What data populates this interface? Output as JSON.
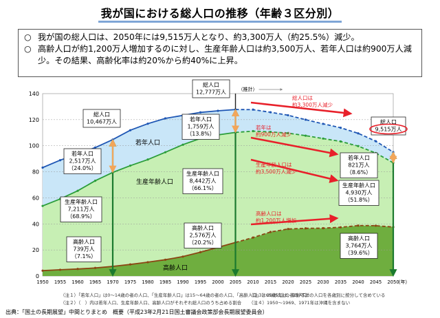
{
  "title": "我が国における総人口の推移（年齢３区分別）",
  "summary": [
    {
      "mark": "○",
      "text": "我が国の総人口は、2050年には9,515万人となり、約3,300万人（約25.5%）減少。"
    },
    {
      "mark": "○",
      "text": "高齢人口が約1,200万人増加するのに対し、生産年齢人口は約3,500万人、若年人口は約900万人減少。その結果、高齢化率は約20%から約40%に上昇。"
    }
  ],
  "colors": {
    "young": "#c9e6f8",
    "working": "#c7efb4",
    "elderly": "#6fae3f",
    "total_line": "#1e56b4",
    "working_line": "#2a9d3a",
    "elderly_line": "#8b4513",
    "annotation_red": "#e8202a",
    "marker_green": "#1b7a2e",
    "orange": "#f2a65a"
  },
  "chart_data": {
    "type": "area",
    "xlabel": "（年）",
    "ylabel": "",
    "ylim": [
      0,
      140
    ],
    "yticks": [
      0,
      20,
      40,
      60,
      80,
      100,
      120,
      140
    ],
    "xlim": [
      1950,
      2050
    ],
    "xticks": [
      1950,
      1955,
      1960,
      1965,
      1970,
      1975,
      1980,
      1985,
      1990,
      1995,
      2000,
      2005,
      2010,
      2015,
      2020,
      2025,
      2030,
      2035,
      2040,
      2045,
      2050
    ],
    "grid": true,
    "x": [
      1950,
      1955,
      1960,
      1965,
      1970,
      1975,
      1980,
      1985,
      1990,
      1995,
      2000,
      2005,
      2010,
      2015,
      2020,
      2025,
      2030,
      2035,
      2040,
      2045,
      2050
    ],
    "series": [
      {
        "name": "高齢人口",
        "values": [
          4.1,
          4.8,
          5.4,
          6.2,
          7.4,
          8.9,
          10.6,
          12.5,
          14.9,
          18.3,
          22.0,
          25.8,
          29.5,
          33.8,
          36.1,
          36.6,
          36.7,
          37.4,
          38.7,
          38.6,
          37.6
        ]
      },
      {
        "name": "生産年齢人口",
        "values": [
          49.7,
          54.3,
          60.0,
          66.9,
          72.1,
          75.8,
          78.8,
          82.5,
          85.9,
          87.3,
          86.3,
          84.4,
          81.7,
          76.8,
          73.6,
          71.1,
          68.8,
          65.9,
          61.0,
          55.8,
          49.3
        ]
      },
      {
        "name": "若年人口",
        "values": [
          29.4,
          29.8,
          28.1,
          25.5,
          25.2,
          27.2,
          27.5,
          26.0,
          22.5,
          20.0,
          18.5,
          17.6,
          16.5,
          15.1,
          13.7,
          12.3,
          11.3,
          10.5,
          9.8,
          9.1,
          8.2
        ]
      }
    ],
    "total": [
      83.2,
      88.9,
      93.5,
      98.6,
      104.7,
      111.9,
      116.9,
      121.0,
      123.3,
      125.6,
      126.8,
      127.8,
      127.7,
      125.7,
      123.4,
      120.0,
      116.8,
      113.8,
      109.5,
      103.5,
      95.1
    ],
    "projection_from": 2005,
    "estimate_label": "（推計）",
    "area_labels": {
      "young": "若年人口",
      "working": "生産年齢人口",
      "elderly": "高齢人口"
    },
    "callouts": {
      "total_1970": [
        "総人口",
        "10,467万人"
      ],
      "young_1970": [
        "若年人口",
        "2,517万人",
        "（24.0%）"
      ],
      "working_1970": [
        "生産年齢人口",
        "7,211万人",
        "（68.9%）"
      ],
      "elderly_1970": [
        "高齢人口",
        "739万人",
        "（7.1%）"
      ],
      "total_2005": [
        "総人口",
        "12,777万人"
      ],
      "young_2005": [
        "若年人口",
        "1,759万人",
        "（13.8%）"
      ],
      "working_2005": [
        "生産年齢人口",
        "8,442万人",
        "（66.1%）"
      ],
      "elderly_2005": [
        "高齢人口",
        "2,576万人",
        "（20.2%）"
      ],
      "total_2050": [
        "総人口",
        "9,515万人"
      ],
      "young_2050": [
        "若年人口",
        "821万人",
        "（8.6%）"
      ],
      "working_2050": [
        "生産年齢人口",
        "4,930万人",
        "（51.8%）"
      ],
      "elderly_2050": [
        "高齢人口",
        "3,764万人",
        "（39.6%）"
      ]
    },
    "annotations": {
      "total_decrease": [
        "総人口は",
        "約3,300万人減少"
      ],
      "young_decrease": [
        "若年は",
        "約900万人減少"
      ],
      "working_decrease": [
        "生産年齢人口は",
        "約3,500万人減少"
      ],
      "elderly_increase": [
        "高齢人口は",
        "約1,200万人増加"
      ]
    }
  },
  "footnotes": {
    "n1": "（注１）「若年人口」は0～14歳の者の人口、「生産年齢人口」は15～64歳の者の人口、「高齢人口」は65歳以上の者の人口",
    "n2": "（注２）（　）内は若年人口、生産年齢人口、高齢人口がそれぞれ総人口のうち占める割合",
    "n3": "（注３）2005年は、年齢不詳の人口を各歳別に按分して含めている",
    "n4": "（注４）1950～1969、1971年は沖縄を含まない"
  },
  "source": "出典：「国土の長期展望」中間とりまとめ　概要（平成23年2月21日国土審議会政策部会長期展望委員会）"
}
